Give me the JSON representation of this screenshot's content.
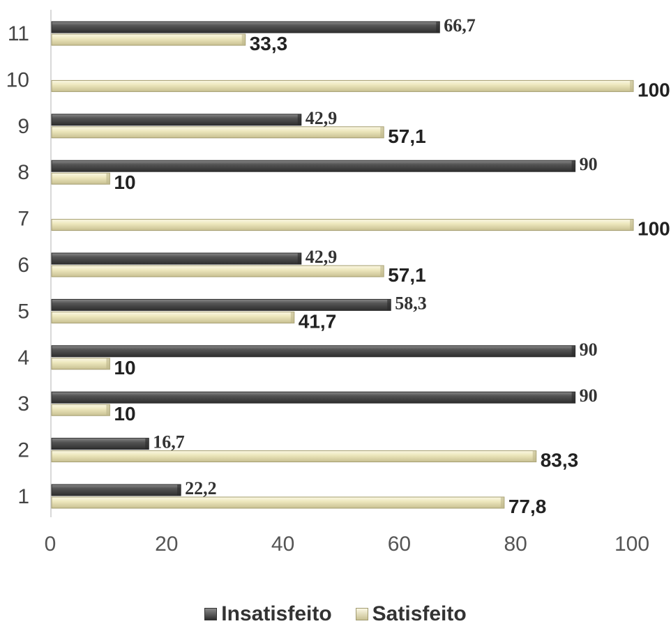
{
  "chart_data": {
    "type": "bar",
    "orientation": "horizontal",
    "categories": [
      "1",
      "2",
      "3",
      "4",
      "5",
      "6",
      "7",
      "8",
      "9",
      "10",
      "11"
    ],
    "series": [
      {
        "name": "Insatisfeito",
        "color": "#4a4a4a",
        "values": [
          22.2,
          16.7,
          90,
          90,
          58.3,
          42.9,
          null,
          90,
          42.9,
          null,
          66.7
        ],
        "labels": [
          "22,2",
          "16,7",
          "90",
          "90",
          "58,3",
          "42,9",
          "",
          "90",
          "42,9",
          "",
          "66,7"
        ]
      },
      {
        "name": "Satisfeito",
        "color": "#e8e2b4",
        "values": [
          77.8,
          83.3,
          10,
          10,
          41.7,
          57.1,
          100,
          10,
          57.1,
          100,
          33.3
        ],
        "labels": [
          "77,8",
          "83,3",
          "10",
          "10",
          "41,7",
          "57,1",
          "100",
          "10",
          "57,1",
          "100",
          "33,3"
        ]
      }
    ],
    "xticks": [
      "0",
      "20",
      "40",
      "60",
      "80",
      "100"
    ],
    "xlim": [
      0,
      100
    ],
    "grid": false,
    "legend_position": "bottom"
  }
}
